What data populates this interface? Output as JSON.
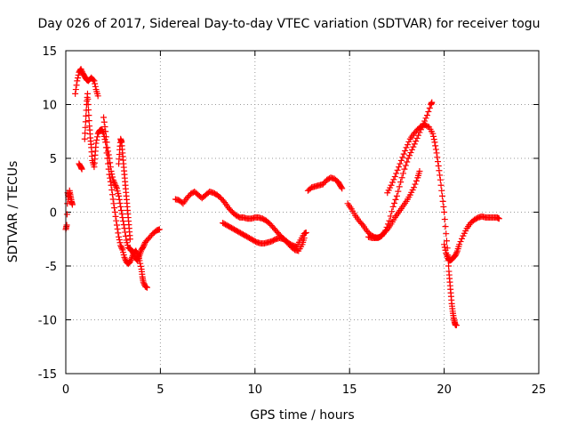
{
  "chart_data": {
    "type": "scatter",
    "title": "Day 026 of 2017, Sidereal Day-to-day VTEC variation (SDTVAR) for receiver togu",
    "xlabel": "GPS time / hours",
    "ylabel": "SDTVAR / TECUs",
    "xlim": [
      0,
      25
    ],
    "ylim": [
      -15,
      15
    ],
    "xticks": [
      "0",
      "5",
      "10",
      "15",
      "20",
      "25"
    ],
    "yticks": [
      "-15",
      "-10",
      "-5",
      "0",
      "5",
      "10",
      "15"
    ],
    "xtick_values": [
      0,
      5,
      10,
      15,
      20,
      25
    ],
    "ytick_values": [
      -15,
      -10,
      -5,
      0,
      5,
      10,
      15
    ],
    "grid": true,
    "marker": "+",
    "series": [
      {
        "name": "SDTVAR",
        "color": "#ff0000",
        "tracks": [
          [
            [
              0.0,
              -1.6
            ],
            [
              0.05,
              -1.2
            ],
            [
              0.1,
              1.8
            ],
            [
              0.15,
              1.2
            ],
            [
              0.2,
              2.0
            ],
            [
              0.25,
              1.5
            ],
            [
              0.3,
              1.0
            ],
            [
              0.35,
              0.7
            ]
          ],
          [
            [
              0.7,
              4.5
            ],
            [
              0.8,
              4.2
            ],
            [
              0.85,
              4.0
            ]
          ],
          [
            [
              0.5,
              11.0
            ],
            [
              0.6,
              12.2
            ],
            [
              0.7,
              13.0
            ],
            [
              0.8,
              13.3
            ],
            [
              0.9,
              12.9
            ],
            [
              1.0,
              12.6
            ],
            [
              1.1,
              12.3
            ],
            [
              1.2,
              12.2
            ],
            [
              1.35,
              12.5
            ],
            [
              1.5,
              12.2
            ],
            [
              1.6,
              11.4
            ],
            [
              1.7,
              10.8
            ]
          ],
          [
            [
              1.0,
              6.8
            ],
            [
              1.05,
              8.4
            ],
            [
              1.1,
              10.0
            ],
            [
              1.15,
              11.0
            ],
            [
              1.2,
              9.5
            ],
            [
              1.25,
              8.0
            ],
            [
              1.3,
              6.9
            ],
            [
              1.35,
              6.0
            ],
            [
              1.4,
              4.8
            ],
            [
              1.5,
              4.2
            ],
            [
              1.55,
              5.3
            ],
            [
              1.6,
              6.4
            ],
            [
              1.7,
              7.3
            ],
            [
              1.8,
              7.6
            ],
            [
              1.9,
              7.7
            ],
            [
              2.0,
              7.3
            ],
            [
              2.1,
              6.5
            ],
            [
              2.2,
              5.0
            ],
            [
              2.3,
              3.5
            ],
            [
              2.4,
              2.5
            ],
            [
              2.5,
              1.2
            ],
            [
              2.6,
              0.0
            ],
            [
              2.7,
              -1.2
            ],
            [
              2.8,
              -2.3
            ],
            [
              2.9,
              -3.1
            ],
            [
              3.0,
              -3.5
            ],
            [
              3.1,
              -4.2
            ],
            [
              3.2,
              -4.6
            ],
            [
              3.3,
              -4.8
            ],
            [
              3.4,
              -4.6
            ],
            [
              3.5,
              -4.2
            ],
            [
              3.6,
              -3.8
            ],
            [
              3.7,
              -3.6
            ],
            [
              3.8,
              -3.9
            ],
            [
              3.9,
              -4.5
            ],
            [
              4.0,
              -5.3
            ],
            [
              4.05,
              -6.0
            ],
            [
              4.1,
              -6.5
            ],
            [
              4.2,
              -6.9
            ],
            [
              4.3,
              -7.0
            ]
          ],
          [
            [
              2.0,
              8.8
            ],
            [
              2.1,
              7.5
            ],
            [
              2.2,
              6.0
            ],
            [
              2.3,
              5.0
            ],
            [
              2.4,
              3.8
            ],
            [
              2.5,
              3.0
            ],
            [
              2.6,
              2.6
            ],
            [
              2.7,
              2.2
            ],
            [
              2.8,
              1.5
            ],
            [
              2.9,
              0.5
            ],
            [
              3.0,
              -0.5
            ],
            [
              3.1,
              -1.5
            ],
            [
              3.2,
              -2.6
            ],
            [
              3.3,
              -3.3
            ],
            [
              3.4,
              -3.4
            ],
            [
              3.5,
              -3.6
            ],
            [
              3.6,
              -3.9
            ],
            [
              3.7,
              -4.3
            ],
            [
              3.8,
              -4.5
            ],
            [
              3.9,
              -4.0
            ],
            [
              4.0,
              -3.5
            ],
            [
              4.1,
              -3.2
            ],
            [
              4.2,
              -2.8
            ],
            [
              4.4,
              -2.4
            ],
            [
              4.6,
              -2.0
            ],
            [
              4.8,
              -1.7
            ],
            [
              4.95,
              -1.6
            ]
          ],
          [
            [
              2.8,
              4.5
            ],
            [
              2.85,
              5.8
            ],
            [
              2.9,
              6.8
            ],
            [
              2.95,
              6.5
            ],
            [
              3.0,
              5.5
            ],
            [
              3.05,
              4.5
            ],
            [
              3.1,
              3.5
            ],
            [
              3.15,
              2.5
            ],
            [
              3.2,
              1.5
            ],
            [
              3.25,
              0.5
            ],
            [
              3.3,
              -0.5
            ],
            [
              3.35,
              -1.5
            ],
            [
              3.4,
              -2.5
            ]
          ],
          [
            [
              5.8,
              1.2
            ],
            [
              6.0,
              1.1
            ],
            [
              6.2,
              0.8
            ],
            [
              6.4,
              1.3
            ],
            [
              6.6,
              1.7
            ],
            [
              6.8,
              1.9
            ],
            [
              7.0,
              1.6
            ],
            [
              7.2,
              1.3
            ],
            [
              7.4,
              1.6
            ],
            [
              7.6,
              1.9
            ],
            [
              7.8,
              1.8
            ],
            [
              8.0,
              1.6
            ],
            [
              8.2,
              1.3
            ],
            [
              8.4,
              0.9
            ],
            [
              8.6,
              0.4
            ],
            [
              8.8,
              0.0
            ],
            [
              9.0,
              -0.3
            ],
            [
              9.2,
              -0.5
            ],
            [
              9.4,
              -0.5
            ],
            [
              9.6,
              -0.6
            ],
            [
              9.8,
              -0.6
            ],
            [
              10.0,
              -0.5
            ],
            [
              10.2,
              -0.5
            ],
            [
              10.4,
              -0.6
            ],
            [
              10.6,
              -0.8
            ],
            [
              10.8,
              -1.1
            ],
            [
              11.0,
              -1.5
            ],
            [
              11.2,
              -1.9
            ],
            [
              11.4,
              -2.3
            ],
            [
              11.6,
              -2.6
            ],
            [
              11.8,
              -2.9
            ],
            [
              12.0,
              -3.1
            ],
            [
              12.2,
              -3.2
            ],
            [
              12.4,
              -2.6
            ],
            [
              12.6,
              -2.0
            ],
            [
              12.7,
              -1.9
            ]
          ],
          [
            [
              8.3,
              -1.0
            ],
            [
              8.5,
              -1.2
            ],
            [
              8.7,
              -1.4
            ],
            [
              8.9,
              -1.6
            ],
            [
              9.1,
              -1.8
            ],
            [
              9.3,
              -2.0
            ],
            [
              9.5,
              -2.2
            ],
            [
              9.7,
              -2.4
            ],
            [
              9.9,
              -2.6
            ],
            [
              10.1,
              -2.8
            ],
            [
              10.3,
              -2.9
            ],
            [
              10.5,
              -2.9
            ],
            [
              10.7,
              -2.8
            ],
            [
              10.9,
              -2.7
            ],
            [
              11.1,
              -2.5
            ],
            [
              11.3,
              -2.4
            ],
            [
              11.5,
              -2.5
            ],
            [
              11.7,
              -2.8
            ],
            [
              11.9,
              -3.2
            ],
            [
              12.1,
              -3.5
            ],
            [
              12.3,
              -3.6
            ],
            [
              12.5,
              -3.0
            ],
            [
              12.6,
              -2.4
            ]
          ],
          [
            [
              12.8,
              2.0
            ],
            [
              13.0,
              2.3
            ],
            [
              13.2,
              2.4
            ],
            [
              13.4,
              2.5
            ],
            [
              13.6,
              2.6
            ],
            [
              13.8,
              3.0
            ],
            [
              14.0,
              3.2
            ],
            [
              14.2,
              3.1
            ],
            [
              14.4,
              2.8
            ],
            [
              14.5,
              2.5
            ],
            [
              14.6,
              2.2
            ]
          ],
          [
            [
              14.9,
              0.8
            ],
            [
              15.1,
              0.3
            ],
            [
              15.3,
              -0.3
            ],
            [
              15.5,
              -0.8
            ],
            [
              15.7,
              -1.2
            ],
            [
              15.9,
              -1.7
            ],
            [
              16.1,
              -2.1
            ],
            [
              16.3,
              -2.3
            ],
            [
              16.5,
              -2.4
            ],
            [
              16.7,
              -2.2
            ],
            [
              16.9,
              -1.7
            ],
            [
              17.1,
              -0.8
            ],
            [
              17.3,
              0.5
            ],
            [
              17.5,
              1.5
            ],
            [
              17.7,
              2.8
            ],
            [
              17.9,
              4.0
            ],
            [
              18.1,
              5.0
            ],
            [
              18.3,
              5.8
            ],
            [
              18.5,
              6.6
            ],
            [
              18.7,
              7.4
            ],
            [
              18.9,
              8.2
            ],
            [
              19.1,
              9.0
            ],
            [
              19.3,
              10.0
            ],
            [
              19.35,
              10.2
            ]
          ],
          [
            [
              16.0,
              -2.3
            ],
            [
              16.2,
              -2.4
            ],
            [
              16.4,
              -2.4
            ],
            [
              16.6,
              -2.3
            ],
            [
              16.8,
              -2.0
            ],
            [
              17.0,
              -1.6
            ],
            [
              17.2,
              -1.1
            ],
            [
              17.4,
              -0.5
            ],
            [
              17.6,
              0.0
            ],
            [
              17.8,
              0.5
            ],
            [
              18.0,
              1.0
            ],
            [
              18.2,
              1.6
            ],
            [
              18.4,
              2.3
            ],
            [
              18.6,
              3.2
            ],
            [
              18.7,
              3.8
            ]
          ],
          [
            [
              17.0,
              1.8
            ],
            [
              17.2,
              2.5
            ],
            [
              17.4,
              3.3
            ],
            [
              17.6,
              4.2
            ],
            [
              17.8,
              5.1
            ],
            [
              18.0,
              6.0
            ],
            [
              18.2,
              6.8
            ],
            [
              18.4,
              7.3
            ],
            [
              18.6,
              7.7
            ],
            [
              18.8,
              8.0
            ],
            [
              19.0,
              8.1
            ],
            [
              19.2,
              7.9
            ],
            [
              19.4,
              7.3
            ],
            [
              19.5,
              6.5
            ],
            [
              19.6,
              5.5
            ],
            [
              19.7,
              4.3
            ],
            [
              19.8,
              3.0
            ],
            [
              19.9,
              1.5
            ],
            [
              20.0,
              0.0
            ],
            [
              20.1,
              -2.0
            ],
            [
              20.2,
              -4.0
            ],
            [
              20.25,
              -5.5
            ],
            [
              20.3,
              -6.5
            ],
            [
              20.35,
              -7.5
            ],
            [
              20.4,
              -8.5
            ],
            [
              20.45,
              -9.2
            ],
            [
              20.5,
              -9.8
            ],
            [
              20.55,
              -10.2
            ],
            [
              20.6,
              -10.5
            ],
            [
              20.65,
              -10.5
            ]
          ],
          [
            [
              20.0,
              -3.0
            ],
            [
              20.1,
              -3.8
            ],
            [
              20.2,
              -4.3
            ],
            [
              20.3,
              -4.5
            ],
            [
              20.4,
              -4.4
            ],
            [
              20.5,
              -4.2
            ],
            [
              20.6,
              -4.0
            ],
            [
              20.7,
              -3.6
            ],
            [
              20.8,
              -3.0
            ],
            [
              21.0,
              -2.2
            ],
            [
              21.2,
              -1.5
            ],
            [
              21.4,
              -1.0
            ],
            [
              21.6,
              -0.7
            ],
            [
              21.8,
              -0.5
            ],
            [
              22.0,
              -0.4
            ],
            [
              22.2,
              -0.5
            ],
            [
              22.4,
              -0.5
            ],
            [
              22.6,
              -0.5
            ],
            [
              22.8,
              -0.5
            ],
            [
              22.9,
              -0.6
            ]
          ]
        ]
      }
    ]
  }
}
